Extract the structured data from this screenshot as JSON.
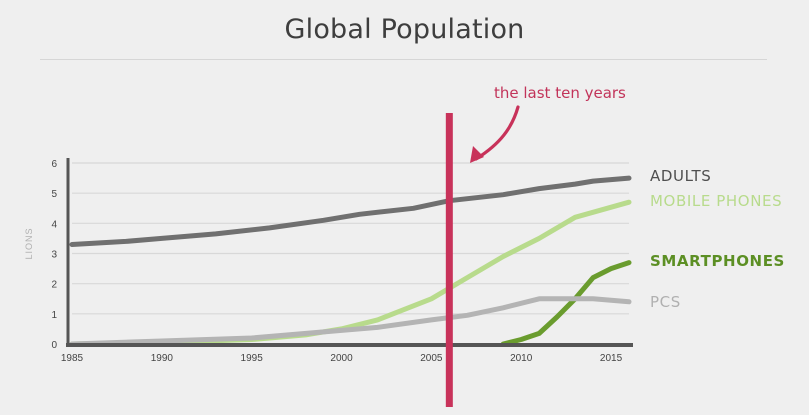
{
  "title": "Global Population",
  "annotation": "the last ten years",
  "colors": {
    "background": "#efefef",
    "axis": "#555555",
    "grid": "#d8d8d8",
    "highlight": "#c8325a"
  },
  "chart_data": {
    "type": "line",
    "title": "Global Population",
    "xlabel": "",
    "ylabel": "LIONS",
    "xlim": [
      1985,
      2016
    ],
    "ylim": [
      0,
      6
    ],
    "x_ticks": [
      1985,
      1990,
      1995,
      2000,
      2005,
      2010,
      2015
    ],
    "y_ticks": [
      0,
      1,
      2,
      3,
      4,
      5,
      6
    ],
    "grid": true,
    "highlight_year": 2006,
    "series": [
      {
        "name": "ADULTS",
        "color": "#707070",
        "x": [
          1985,
          1988,
          1990,
          1993,
          1996,
          1999,
          2001,
          2004,
          2006,
          2009,
          2011,
          2013,
          2014,
          2016
        ],
        "y": [
          3.3,
          3.4,
          3.5,
          3.65,
          3.85,
          4.1,
          4.3,
          4.5,
          4.75,
          4.95,
          5.15,
          5.3,
          5.4,
          5.5
        ]
      },
      {
        "name": "MOBILE PHONES",
        "color": "#b8db8c",
        "x": [
          1985,
          1990,
          1995,
          1998,
          2000,
          2002,
          2005,
          2007,
          2009,
          2011,
          2013,
          2016
        ],
        "y": [
          0.0,
          0.05,
          0.15,
          0.3,
          0.5,
          0.8,
          1.5,
          2.2,
          2.9,
          3.5,
          4.2,
          4.7
        ]
      },
      {
        "name": "SMARTPHONES",
        "color": "#6a9c2e",
        "x": [
          2009,
          2010,
          2011,
          2012,
          2013,
          2014,
          2015,
          2016
        ],
        "y": [
          0.0,
          0.15,
          0.35,
          0.9,
          1.5,
          2.2,
          2.5,
          2.7
        ]
      },
      {
        "name": "PCS",
        "color": "#b4b4b4",
        "x": [
          1985,
          1990,
          1995,
          2000,
          2002,
          2005,
          2007,
          2009,
          2011,
          2014,
          2016
        ],
        "y": [
          0.0,
          0.1,
          0.2,
          0.45,
          0.55,
          0.8,
          0.95,
          1.2,
          1.5,
          1.5,
          1.4
        ]
      }
    ]
  }
}
